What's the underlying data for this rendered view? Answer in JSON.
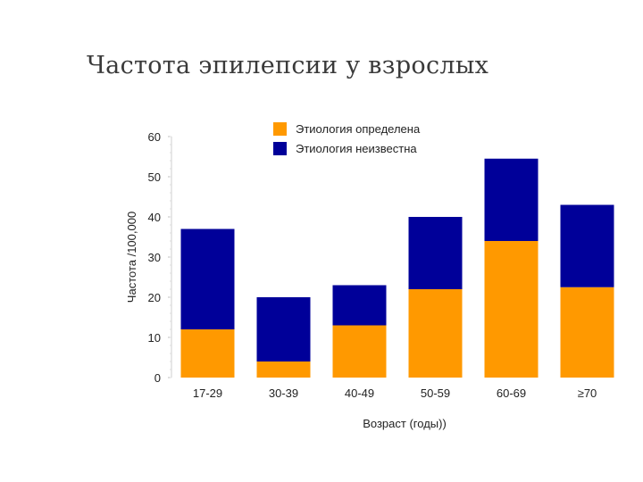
{
  "title": "Частота эпилепсии у взрослых",
  "chart_data": {
    "type": "bar",
    "stacked": true,
    "categories": [
      "17-29",
      "30-39",
      "40-49",
      "50-59",
      "60-69",
      "≥70"
    ],
    "series": [
      {
        "name": "Этиология определена",
        "color": "#FF9900",
        "values": [
          12,
          4,
          13,
          22,
          34,
          22.5
        ]
      },
      {
        "name": "Этиология неизвестна",
        "color": "#000099",
        "values": [
          25,
          16,
          10,
          18,
          20.5,
          20.5
        ]
      }
    ],
    "xlabel": "Возраст (годы))",
    "ylabel": "Частота /100,000",
    "ylim": [
      0,
      60
    ],
    "yticks": [
      0,
      10,
      20,
      30,
      40,
      50,
      60
    ],
    "legend": "top-right",
    "grid": false
  }
}
